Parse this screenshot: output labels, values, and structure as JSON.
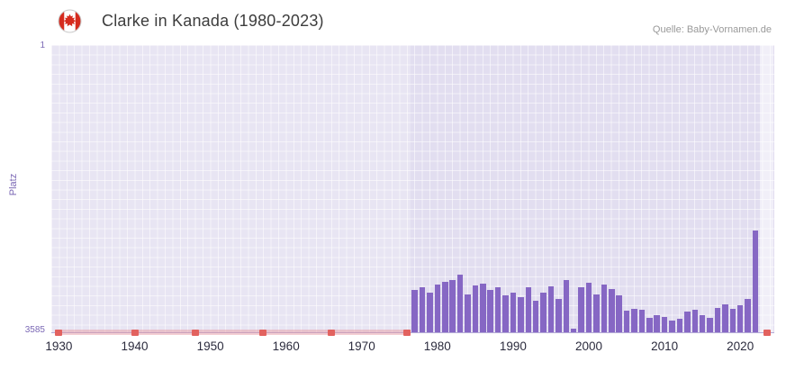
{
  "header": {
    "title": "Clarke in Kanada (1980-2023)",
    "source": "Quelle: Baby-Vornamen.de"
  },
  "axes": {
    "y_label": "Platz",
    "y_top": "1",
    "y_bottom": "3585"
  },
  "colors": {
    "bar": "#8667c4",
    "plot_bg": "#e2def0",
    "grid": "#ffffff",
    "axis_text_purple": "#7b68b5",
    "tick_text": "#2b2b3d",
    "marker_red": "#e2625f",
    "marker_pale": "#e7949e",
    "flag_red": "#d52b1e"
  },
  "chart_data": {
    "type": "bar",
    "title": "Clarke in Kanada (1980-2023)",
    "xlabel": "",
    "ylabel": "Platz",
    "y_axis": {
      "min": 1,
      "max": 3585,
      "inverted": true
    },
    "x_domain": [
      1929,
      2024.5
    ],
    "x_tick_years": [
      1930,
      1940,
      1950,
      1960,
      1970,
      1980,
      1990,
      2000,
      2010,
      2020
    ],
    "years": [
      1977,
      1978,
      1979,
      1980,
      1981,
      1982,
      1983,
      1984,
      1985,
      1986,
      1987,
      1988,
      1989,
      1990,
      1991,
      1992,
      1993,
      1994,
      1995,
      1996,
      1997,
      1998,
      1999,
      2000,
      2001,
      2002,
      2003,
      2004,
      2005,
      2006,
      2007,
      2008,
      2009,
      2010,
      2011,
      2012,
      2013,
      2014,
      2015,
      2016,
      2017,
      2018,
      2019,
      2020,
      2021,
      2022
    ],
    "ranks": [
      3060,
      3020,
      3090,
      2990,
      2960,
      2930,
      2870,
      3110,
      3000,
      2980,
      3060,
      3030,
      3130,
      3090,
      3150,
      3020,
      3190,
      3090,
      3010,
      3170,
      2940,
      3540,
      3020,
      2970,
      3110,
      2990,
      3050,
      3120,
      3320,
      3290,
      3310,
      3410,
      3370,
      3390,
      3440,
      3420,
      3330,
      3300,
      3370,
      3410,
      3280,
      3240,
      3290,
      3250,
      3170,
      2320
    ],
    "unranked_span_years": [
      1929.5,
      1976.5
    ],
    "unranked_marker_years": [
      1930,
      1940,
      1948,
      1957,
      1966,
      1976,
      2023.6
    ],
    "highlight_band_years": [
      2022.6,
      2024.4
    ],
    "legend": "none",
    "grid": "on"
  }
}
